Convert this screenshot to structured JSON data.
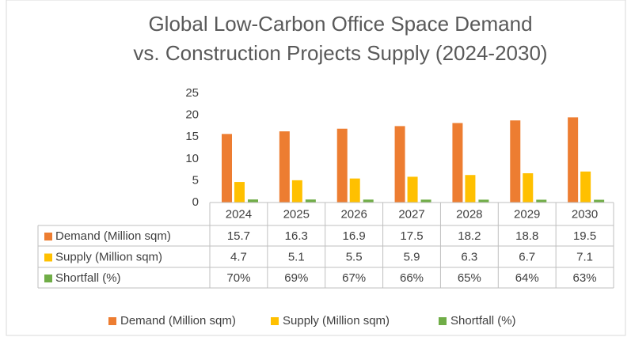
{
  "chart_data": {
    "type": "bar",
    "title": [
      "Global Low-Carbon Office Space Demand",
      "vs. Construction Projects Supply (2024-2030)"
    ],
    "categories": [
      "2024",
      "2025",
      "2026",
      "2027",
      "2028",
      "2029",
      "2030"
    ],
    "series": [
      {
        "name": "Demand (Million sqm)",
        "color": "#ed7d31",
        "values": [
          15.7,
          16.3,
          16.9,
          17.5,
          18.2,
          18.8,
          19.5
        ]
      },
      {
        "name": "Supply (Million sqm)",
        "color": "#ffc000",
        "values": [
          4.7,
          5.1,
          5.5,
          5.9,
          6.3,
          6.7,
          7.1
        ]
      },
      {
        "name": "Shortfall (%)",
        "color": "#70ad47",
        "values": [
          0.7,
          0.69,
          0.67,
          0.66,
          0.65,
          0.64,
          0.63
        ],
        "value_labels": [
          "70%",
          "69%",
          "67%",
          "66%",
          "65%",
          "64%",
          "63%"
        ]
      }
    ],
    "ylim": [
      0,
      25
    ],
    "yticks": [
      0,
      5,
      10,
      15,
      20,
      25
    ],
    "grid": false,
    "data_table": true,
    "legend": "bottom"
  }
}
